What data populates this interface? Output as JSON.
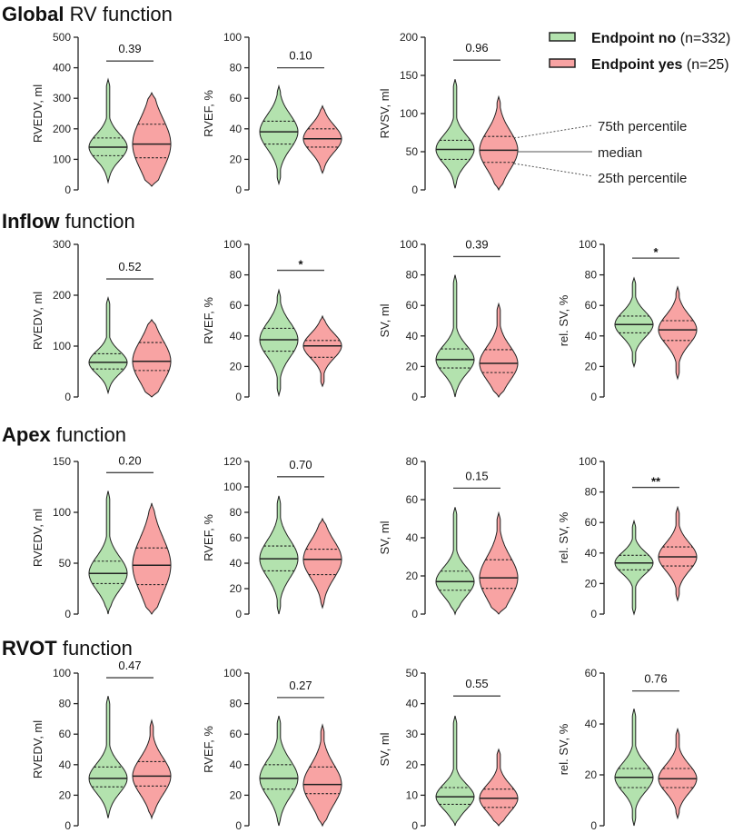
{
  "colors": {
    "no": "#b3e2ae",
    "yes": "#f8a3a3",
    "line": "#2a2a2a"
  },
  "legend": {
    "no": {
      "bold": "Endpoint no",
      "rest": " (n=332)"
    },
    "yes": {
      "bold": "Endpoint yes",
      "rest": " (n=25)"
    },
    "annotations": {
      "q3": "75th percentile",
      "median": "median",
      "q1": "25th percentile"
    }
  },
  "sections": [
    {
      "bold": "Global",
      "rest": " RV function"
    },
    {
      "bold": "Inflow",
      "rest": " function"
    },
    {
      "bold": "Apex",
      "rest": " function"
    },
    {
      "bold": "RVOT",
      "rest": " function"
    }
  ],
  "chart_data": [
    {
      "type": "violin",
      "section": 0,
      "col": 0,
      "ylabel": "RVEDV, ml",
      "ylim": [
        0,
        500
      ],
      "ticks": [
        0,
        100,
        200,
        300,
        400,
        500
      ],
      "sig": {
        "label": "0.39",
        "y": 422
      },
      "groups": [
        {
          "name": "Endpoint no",
          "min": 25,
          "q1": 112,
          "median": 140,
          "q3": 170,
          "max": 362
        },
        {
          "name": "Endpoint yes",
          "min": 12,
          "q1": 105,
          "median": 150,
          "q3": 215,
          "max": 318
        }
      ]
    },
    {
      "type": "violin",
      "section": 0,
      "col": 1,
      "ylabel": "RVEF, %",
      "ylim": [
        0,
        100
      ],
      "ticks": [
        0,
        20,
        40,
        60,
        80,
        100
      ],
      "sig": {
        "label": "0.10",
        "y": 80
      },
      "groups": [
        {
          "name": "Endpoint no",
          "min": 4,
          "q1": 30,
          "median": 38,
          "q3": 45,
          "max": 68
        },
        {
          "name": "Endpoint yes",
          "min": 11,
          "q1": 28,
          "median": 33.5,
          "q3": 40,
          "max": 55
        }
      ]
    },
    {
      "type": "violin",
      "section": 0,
      "col": 2,
      "ylabel": "RVSV, ml",
      "ylim": [
        0,
        200
      ],
      "ticks": [
        0,
        50,
        100,
        150,
        200
      ],
      "sig": {
        "label": "0.96",
        "y": 170
      },
      "groups": [
        {
          "name": "Endpoint no",
          "min": 2,
          "q1": 40,
          "median": 53,
          "q3": 65,
          "max": 145
        },
        {
          "name": "Endpoint yes",
          "min": 0,
          "q1": 36,
          "median": 52,
          "q3": 70,
          "max": 122
        }
      ]
    },
    {
      "type": "violin",
      "section": 1,
      "col": 0,
      "ylabel": "RVEDV, ml",
      "ylim": [
        0,
        300
      ],
      "ticks": [
        0,
        100,
        200,
        300
      ],
      "sig": {
        "label": "0.52",
        "y": 232
      },
      "groups": [
        {
          "name": "Endpoint no",
          "min": 8,
          "q1": 55,
          "median": 68,
          "q3": 85,
          "max": 195
        },
        {
          "name": "Endpoint yes",
          "min": 0,
          "q1": 52,
          "median": 70,
          "q3": 107,
          "max": 152
        }
      ]
    },
    {
      "type": "violin",
      "section": 1,
      "col": 1,
      "ylabel": "RVEF, %",
      "ylim": [
        0,
        100
      ],
      "ticks": [
        0,
        20,
        40,
        60,
        80,
        100
      ],
      "sig": {
        "label": "*",
        "y": 83
      },
      "groups": [
        {
          "name": "Endpoint no",
          "min": 1,
          "q1": 30,
          "median": 37.5,
          "q3": 45,
          "max": 70
        },
        {
          "name": "Endpoint yes",
          "min": 7,
          "q1": 26,
          "median": 33.5,
          "q3": 37,
          "max": 53
        }
      ]
    },
    {
      "type": "violin",
      "section": 1,
      "col": 2,
      "ylabel": "SV, ml",
      "ylim": [
        0,
        100
      ],
      "ticks": [
        0,
        20,
        40,
        60,
        80,
        100
      ],
      "sig": {
        "label": "0.39",
        "y": 92
      },
      "groups": [
        {
          "name": "Endpoint no",
          "min": 0,
          "q1": 19,
          "median": 24.5,
          "q3": 31.5,
          "max": 80
        },
        {
          "name": "Endpoint yes",
          "min": 0,
          "q1": 16,
          "median": 22,
          "q3": 31,
          "max": 61
        }
      ]
    },
    {
      "type": "violin",
      "section": 1,
      "col": 3,
      "ylabel": "rel. SV, %",
      "ylim": [
        0,
        100
      ],
      "ticks": [
        0,
        20,
        40,
        60,
        80,
        100
      ],
      "sig": {
        "label": "*",
        "y": 91
      },
      "groups": [
        {
          "name": "Endpoint no",
          "min": 20,
          "q1": 42,
          "median": 47.5,
          "q3": 53,
          "max": 78
        },
        {
          "name": "Endpoint yes",
          "min": 12,
          "q1": 37,
          "median": 44,
          "q3": 50,
          "max": 72
        }
      ]
    },
    {
      "type": "violin",
      "section": 2,
      "col": 0,
      "ylabel": "RVEDV, ml",
      "ylim": [
        0,
        150
      ],
      "ticks": [
        0,
        50,
        100,
        150
      ],
      "sig": {
        "label": "0.20",
        "y": 139
      },
      "groups": [
        {
          "name": "Endpoint no",
          "min": 0,
          "q1": 30,
          "median": 40,
          "q3": 52,
          "max": 121
        },
        {
          "name": "Endpoint yes",
          "min": 0,
          "q1": 29,
          "median": 48,
          "q3": 65,
          "max": 109
        }
      ]
    },
    {
      "type": "violin",
      "section": 2,
      "col": 1,
      "ylabel": "RVEF, %",
      "ylim": [
        0,
        120
      ],
      "ticks": [
        0,
        20,
        40,
        60,
        80,
        100,
        120
      ],
      "sig": {
        "label": "0.70",
        "y": 108
      },
      "groups": [
        {
          "name": "Endpoint no",
          "min": 0,
          "q1": 34,
          "median": 43.5,
          "q3": 53.5,
          "max": 93
        },
        {
          "name": "Endpoint yes",
          "min": 5,
          "q1": 31,
          "median": 43,
          "q3": 51,
          "max": 75
        }
      ]
    },
    {
      "type": "violin",
      "section": 2,
      "col": 2,
      "ylabel": "SV, ml",
      "ylim": [
        0,
        80
      ],
      "ticks": [
        0,
        20,
        40,
        60,
        80
      ],
      "sig": {
        "label": "0.15",
        "y": 66
      },
      "groups": [
        {
          "name": "Endpoint no",
          "min": 0,
          "q1": 12.5,
          "median": 17,
          "q3": 22.5,
          "max": 56
        },
        {
          "name": "Endpoint yes",
          "min": 0,
          "q1": 13.5,
          "median": 19,
          "q3": 28.5,
          "max": 53
        }
      ]
    },
    {
      "type": "violin",
      "section": 2,
      "col": 3,
      "ylabel": "rel. SV, %",
      "ylim": [
        0,
        100
      ],
      "ticks": [
        0,
        20,
        40,
        60,
        80,
        100
      ],
      "sig": {
        "label": "**",
        "y": 83
      },
      "groups": [
        {
          "name": "Endpoint no",
          "min": 0,
          "q1": 29,
          "median": 33.5,
          "q3": 38.5,
          "max": 61
        },
        {
          "name": "Endpoint yes",
          "min": 9,
          "q1": 31.5,
          "median": 37.5,
          "q3": 44,
          "max": 70
        }
      ]
    },
    {
      "type": "violin",
      "section": 3,
      "col": 0,
      "ylabel": "RVEDV, ml",
      "ylim": [
        0,
        100
      ],
      "ticks": [
        0,
        20,
        40,
        60,
        80,
        100
      ],
      "sig": {
        "label": "0.47",
        "y": 97
      },
      "groups": [
        {
          "name": "Endpoint no",
          "min": 5,
          "q1": 25.5,
          "median": 31,
          "q3": 38.5,
          "max": 85
        },
        {
          "name": "Endpoint yes",
          "min": 5,
          "q1": 26,
          "median": 32.5,
          "q3": 42,
          "max": 69
        }
      ]
    },
    {
      "type": "violin",
      "section": 3,
      "col": 1,
      "ylabel": "RVEF, %",
      "ylim": [
        0,
        100
      ],
      "ticks": [
        0,
        20,
        40,
        60,
        80,
        100
      ],
      "sig": {
        "label": "0.27",
        "y": 84
      },
      "groups": [
        {
          "name": "Endpoint no",
          "min": 0,
          "q1": 24,
          "median": 31,
          "q3": 40,
          "max": 72
        },
        {
          "name": "Endpoint yes",
          "min": 0,
          "q1": 21,
          "median": 27,
          "q3": 38.5,
          "max": 66
        }
      ]
    },
    {
      "type": "violin",
      "section": 3,
      "col": 2,
      "ylabel": "SV, ml",
      "ylim": [
        0,
        50
      ],
      "ticks": [
        0,
        10,
        20,
        30,
        40,
        50
      ],
      "sig": {
        "label": "0.55",
        "y": 42.5
      },
      "groups": [
        {
          "name": "Endpoint no",
          "min": 0,
          "q1": 7,
          "median": 9.5,
          "q3": 12.5,
          "max": 36
        },
        {
          "name": "Endpoint yes",
          "min": 0,
          "q1": 6,
          "median": 9,
          "q3": 12,
          "max": 25
        }
      ]
    },
    {
      "type": "violin",
      "section": 3,
      "col": 3,
      "ylabel": "rel. SV, %",
      "ylim": [
        0,
        60
      ],
      "ticks": [
        0,
        20,
        40,
        60
      ],
      "sig": {
        "label": "0.76",
        "y": 53
      },
      "groups": [
        {
          "name": "Endpoint no",
          "min": 0,
          "q1": 15,
          "median": 19,
          "q3": 22.5,
          "max": 46
        },
        {
          "name": "Endpoint yes",
          "min": 3,
          "q1": 15,
          "median": 18.5,
          "q3": 22.5,
          "max": 38
        }
      ]
    }
  ]
}
